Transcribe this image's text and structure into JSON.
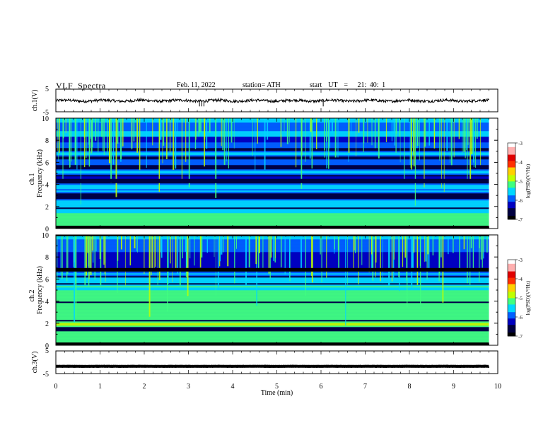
{
  "header": {
    "title": "VLF  Spectra",
    "date": "Feb. 11, 2022",
    "station": "station= ATH",
    "start": "start  UT  =   21: 40: 1"
  },
  "colors": {
    "colormap": [
      "#000000",
      "#000040",
      "#0000c0",
      "#0060ff",
      "#00d8ff",
      "#40ff80",
      "#c0ff00",
      "#ffd000",
      "#ff3000",
      "#e00000",
      "#ffb0b0",
      "#ffffff"
    ],
    "axis": "#000000"
  },
  "chart_data": [
    {
      "type": "line",
      "panel": "ch1-waveform",
      "ylabel": "ch.1(V)",
      "ylim": [
        -5,
        5
      ],
      "yticks": [
        "5",
        "-5"
      ],
      "x_range_min": [
        0,
        9.8
      ],
      "level_v": -0.1,
      "noise_amplitude_v": 0.6,
      "spikes_min": [
        3.25,
        3.3,
        3.35,
        6.05
      ]
    },
    {
      "type": "heatmap",
      "panel": "ch1-spectrogram",
      "ylabel": "Frequency  (kHz)",
      "ylabel_prefix": "ch.1",
      "ylim_khz": [
        0,
        10
      ],
      "yticks": [
        "0",
        "2",
        "4",
        "6",
        "8",
        "10"
      ],
      "x_range_min": [
        0,
        9.8
      ],
      "colorbar": {
        "label": "log(PSD)(V²/Hz)",
        "range": [
          -7,
          -3
        ],
        "ticks": [
          "-3",
          "-4",
          "-5",
          "-6",
          "-7"
        ]
      },
      "bands_khz": [
        {
          "f": 0.3,
          "level": 4.5
        },
        {
          "f": 0.8,
          "level": 4.2
        },
        {
          "f": 1.1,
          "level": 4.0
        },
        {
          "f": 1.6,
          "level": 3.4
        },
        {
          "f": 2.2,
          "level": 3.0
        },
        {
          "f": 2.5,
          "level": 2.6
        },
        {
          "f": 3.4,
          "level": 2.6
        },
        {
          "f": 3.8,
          "level": 2.8
        },
        {
          "f": 4.5,
          "level": 1.0
        },
        {
          "f": 5.1,
          "level": 2.7
        },
        {
          "f": 6.0,
          "level": 2.5
        },
        {
          "f": 6.8,
          "level": 2.8
        },
        {
          "f": 7.6,
          "level": 2.5
        },
        {
          "f": 8.6,
          "level": 3.2
        }
      ]
    },
    {
      "type": "heatmap",
      "panel": "ch2-spectrogram",
      "ylabel": "Frequency  (kHz)",
      "ylabel_prefix": "ch.2",
      "ylim_khz": [
        0,
        10
      ],
      "yticks": [
        "0",
        "2",
        "4",
        "6",
        "8",
        "10"
      ],
      "x_range_min": [
        0,
        9.8
      ],
      "colorbar": {
        "label": "log(PSD)(V²/Hz)",
        "range": [
          -7,
          -3
        ],
        "ticks": [
          "-3",
          "-4",
          "-5",
          "-6",
          "-7"
        ]
      },
      "bands_khz": [
        {
          "f": 0.5,
          "level": 4.6
        },
        {
          "f": 1.0,
          "level": 4.2
        },
        {
          "f": 1.9,
          "level": 4.8
        },
        {
          "f": 2.6,
          "level": 4.0
        },
        {
          "f": 3.1,
          "level": 4.4
        },
        {
          "f": 3.6,
          "level": 4.5
        },
        {
          "f": 4.2,
          "level": 4.0
        },
        {
          "f": 4.8,
          "level": 4.3
        },
        {
          "f": 5.3,
          "level": 3.6
        },
        {
          "f": 5.9,
          "level": 3.0
        },
        {
          "f": 6.5,
          "level": 2.6
        },
        {
          "f": 7.0,
          "level": 1.2
        }
      ]
    },
    {
      "type": "line",
      "panel": "ch3-waveform",
      "ylabel": "ch.3(V)",
      "ylim": [
        -5,
        5
      ],
      "yticks": [
        "5",
        "-5"
      ],
      "x_range_min": [
        0,
        9.8
      ],
      "level_v": -1.8,
      "noise_amplitude_v": 0.05
    }
  ],
  "xaxis": {
    "label": "Time  (min)",
    "range": [
      0,
      10
    ],
    "ticks": [
      "0",
      "1",
      "2",
      "3",
      "4",
      "5",
      "6",
      "7",
      "8",
      "9",
      "10"
    ]
  }
}
